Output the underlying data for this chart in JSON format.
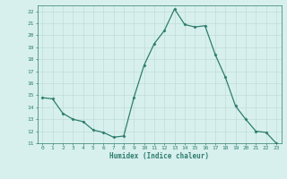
{
  "xlabel": "Humidex (Indice chaleur)",
  "x": [
    0,
    1,
    2,
    3,
    4,
    5,
    6,
    7,
    8,
    9,
    10,
    11,
    12,
    13,
    14,
    15,
    16,
    17,
    18,
    19,
    20,
    21,
    22,
    23
  ],
  "y": [
    14.8,
    14.7,
    13.5,
    13.0,
    12.8,
    12.1,
    11.9,
    11.5,
    11.6,
    14.8,
    17.5,
    19.3,
    20.4,
    22.2,
    20.9,
    20.7,
    20.8,
    18.4,
    16.5,
    14.1,
    13.0,
    12.0,
    11.9,
    11.0
  ],
  "ylim": [
    11,
    22.5
  ],
  "yticks": [
    11,
    12,
    13,
    14,
    15,
    16,
    17,
    18,
    19,
    20,
    21,
    22
  ],
  "xticks": [
    0,
    1,
    2,
    3,
    4,
    5,
    6,
    7,
    8,
    9,
    10,
    11,
    12,
    13,
    14,
    15,
    16,
    17,
    18,
    19,
    20,
    21,
    22,
    23
  ],
  "line_color": "#2e7d6e",
  "bg_color": "#d7f0ee",
  "grid_color": "#c0ddd8",
  "tick_label_color": "#2e7d6e",
  "xlabel_color": "#2e7d6e",
  "marker": "D",
  "marker_size": 1.5,
  "linewidth": 0.9
}
